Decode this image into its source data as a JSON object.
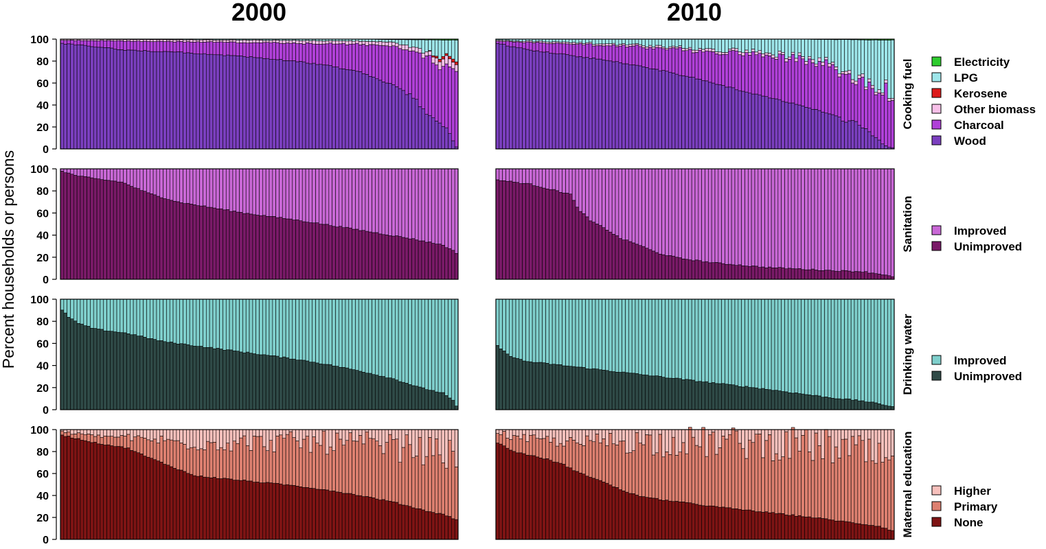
{
  "figure": {
    "ylabel": "Percent households or persons",
    "columns": [
      "2000",
      "2010"
    ],
    "yticks": [
      0,
      20,
      40,
      60,
      80,
      100
    ]
  },
  "chart_data": [
    {
      "type": "bar",
      "stacked": true,
      "row_label": "Cooking fuel",
      "ylim": [
        0,
        100
      ],
      "bars_per_panel": 120,
      "series": [
        {
          "name": "Wood",
          "color": "#7b3fbf"
        },
        {
          "name": "Charcoal",
          "color": "#b040d8"
        },
        {
          "name": "Other biomass",
          "color": "#f7c0e8"
        },
        {
          "name": "Kerosene",
          "color": "#dd1c1c"
        },
        {
          "name": "LPG",
          "color": "#9ee6ea"
        },
        {
          "name": "Electricity",
          "color": "#2ecc2e"
        }
      ],
      "panels": [
        {
          "column": "2000",
          "profiles": {
            "Wood": [
              [
                0,
                96
              ],
              [
                10,
                93
              ],
              [
                20,
                90
              ],
              [
                35,
                88
              ],
              [
                50,
                85
              ],
              [
                60,
                83
              ],
              [
                70,
                80
              ],
              [
                80,
                76
              ],
              [
                90,
                70
              ],
              [
                95,
                64
              ],
              [
                100,
                58
              ],
              [
                105,
                50
              ],
              [
                108,
                42
              ],
              [
                111,
                30
              ],
              [
                113,
                26
              ],
              [
                116,
                20
              ],
              [
                118,
                8
              ],
              [
                119,
                2
              ]
            ],
            "Charcoal": [
              [
                0,
                2
              ],
              [
                20,
                6
              ],
              [
                50,
                8
              ],
              [
                80,
                14
              ],
              [
                100,
                30
              ],
              [
                110,
                52
              ],
              [
                114,
                50
              ],
              [
                119,
                60
              ]
            ],
            "Other biomass": [
              [
                0,
                1
              ],
              [
                50,
                2
              ],
              [
                90,
                3
              ],
              [
                110,
                4
              ],
              [
                119,
                8
              ]
            ],
            "Kerosene": [
              [
                0,
                0
              ],
              [
                110,
                0
              ],
              [
                113,
                2
              ],
              [
                119,
                3
              ]
            ],
            "LPG": [
              [
                0,
                0
              ],
              [
                60,
                1
              ],
              [
                100,
                2
              ],
              [
                119,
                20
              ]
            ],
            "Electricity": [
              [
                0,
                0
              ],
              [
                90,
                0
              ],
              [
                119,
                1
              ]
            ]
          }
        },
        {
          "column": "2010",
          "profiles": {
            "Wood": [
              [
                0,
                96
              ],
              [
                10,
                90
              ],
              [
                20,
                86
              ],
              [
                30,
                82
              ],
              [
                40,
                77
              ],
              [
                50,
                71
              ],
              [
                60,
                64
              ],
              [
                70,
                56
              ],
              [
                80,
                48
              ],
              [
                90,
                41
              ],
              [
                100,
                32
              ],
              [
                108,
                25
              ],
              [
                112,
                16
              ],
              [
                115,
                8
              ],
              [
                117,
                3
              ],
              [
                119,
                1
              ]
            ],
            "Charcoal": [
              [
                0,
                2
              ],
              [
                30,
                10
              ],
              [
                60,
                20
              ],
              [
                80,
                28
              ],
              [
                100,
                40
              ],
              [
                119,
                45
              ]
            ],
            "Other biomass": [
              [
                0,
                1
              ],
              [
                60,
                2
              ],
              [
                119,
                3
              ]
            ],
            "Kerosene": [
              [
                0,
                0
              ],
              [
                119,
                0
              ]
            ],
            "LPG": [
              [
                0,
                1
              ],
              [
                40,
                5
              ],
              [
                80,
                12
              ],
              [
                100,
                20
              ],
              [
                119,
                51
              ]
            ],
            "Electricity": [
              [
                0,
                0
              ],
              [
                90,
                0
              ],
              [
                119,
                1
              ]
            ]
          }
        }
      ]
    },
    {
      "type": "bar",
      "stacked": true,
      "row_label": "Sanitation",
      "ylim": [
        0,
        100
      ],
      "bars_per_panel": 120,
      "series": [
        {
          "name": "Unimproved",
          "color": "#7a1a68"
        },
        {
          "name": "Improved",
          "color": "#c968d6"
        }
      ],
      "panels": [
        {
          "column": "2000",
          "profiles": {
            "Unimproved": [
              [
                0,
                98
              ],
              [
                4,
                94
              ],
              [
                10,
                91
              ],
              [
                18,
                88
              ],
              [
                26,
                78
              ],
              [
                35,
                70
              ],
              [
                45,
                65
              ],
              [
                55,
                60
              ],
              [
                70,
                54
              ],
              [
                85,
                47
              ],
              [
                95,
                42
              ],
              [
                105,
                37
              ],
              [
                115,
                31
              ],
              [
                119,
                24
              ]
            ],
            "Improved": []
          }
        },
        {
          "column": "2010",
          "profiles": {
            "Unimproved": [
              [
                0,
                90
              ],
              [
                10,
                86
              ],
              [
                18,
                80
              ],
              [
                22,
                77
              ],
              [
                24,
                65
              ],
              [
                28,
                53
              ],
              [
                33,
                45
              ],
              [
                37,
                37
              ],
              [
                42,
                32
              ],
              [
                48,
                24
              ],
              [
                55,
                19
              ],
              [
                65,
                15
              ],
              [
                80,
                11
              ],
              [
                100,
                8
              ],
              [
                110,
                7
              ],
              [
                117,
                4
              ],
              [
                119,
                2
              ]
            ],
            "Improved": []
          }
        }
      ]
    },
    {
      "type": "bar",
      "stacked": true,
      "row_label": "Drinking water",
      "ylim": [
        0,
        100
      ],
      "bars_per_panel": 120,
      "series": [
        {
          "name": "Unimproved",
          "color": "#2f4a47"
        },
        {
          "name": "Improved",
          "color": "#7fcfcc"
        }
      ],
      "panels": [
        {
          "column": "2000",
          "profiles": {
            "Unimproved": [
              [
                0,
                90
              ],
              [
                2,
                84
              ],
              [
                5,
                78
              ],
              [
                10,
                73
              ],
              [
                20,
                69
              ],
              [
                30,
                62
              ],
              [
                40,
                58
              ],
              [
                50,
                54
              ],
              [
                60,
                50
              ],
              [
                70,
                46
              ],
              [
                80,
                41
              ],
              [
                90,
                35
              ],
              [
                100,
                28
              ],
              [
                108,
                20
              ],
              [
                115,
                15
              ],
              [
                118,
                8
              ],
              [
                119,
                3
              ]
            ],
            "Improved": []
          }
        },
        {
          "column": "2010",
          "profiles": {
            "Unimproved": [
              [
                0,
                58
              ],
              [
                3,
                50
              ],
              [
                8,
                44
              ],
              [
                20,
                40
              ],
              [
                40,
                33
              ],
              [
                60,
                26
              ],
              [
                80,
                19
              ],
              [
                100,
                11
              ],
              [
                110,
                8
              ],
              [
                119,
                3
              ]
            ],
            "Improved": []
          }
        }
      ]
    },
    {
      "type": "bar",
      "stacked": true,
      "row_label": "Maternal education",
      "ylim": [
        0,
        100
      ],
      "bars_per_panel": 120,
      "series": [
        {
          "name": "None",
          "color": "#7e1414"
        },
        {
          "name": "Primary",
          "color": "#dd8070"
        },
        {
          "name": "Higher",
          "color": "#f7c0bc"
        }
      ],
      "panels": [
        {
          "column": "2000",
          "profiles": {
            "None": [
              [
                0,
                95
              ],
              [
                10,
                88
              ],
              [
                20,
                83
              ],
              [
                25,
                76
              ],
              [
                30,
                70
              ],
              [
                35,
                64
              ],
              [
                40,
                58
              ],
              [
                50,
                55
              ],
              [
                60,
                52
              ],
              [
                70,
                49
              ],
              [
                80,
                45
              ],
              [
                90,
                40
              ],
              [
                100,
                34
              ],
              [
                110,
                26
              ],
              [
                116,
                22
              ],
              [
                119,
                18
              ]
            ],
            "Primary": [
              [
                0,
                3
              ],
              [
                20,
                10
              ],
              [
                40,
                30
              ],
              [
                60,
                36
              ],
              [
                80,
                43
              ],
              [
                100,
                50
              ],
              [
                110,
                55
              ],
              [
                119,
                56
              ]
            ],
            "Higher": []
          }
        },
        {
          "column": "2010",
          "profiles": {
            "None": [
              [
                0,
                88
              ],
              [
                5,
                80
              ],
              [
                15,
                73
              ],
              [
                20,
                68
              ],
              [
                25,
                60
              ],
              [
                30,
                55
              ],
              [
                35,
                48
              ],
              [
                40,
                42
              ],
              [
                45,
                38
              ],
              [
                55,
                34
              ],
              [
                65,
                30
              ],
              [
                80,
                25
              ],
              [
                95,
                20
              ],
              [
                105,
                16
              ],
              [
                115,
                12
              ],
              [
                119,
                8
              ]
            ],
            "Primary": [
              [
                0,
                10
              ],
              [
                20,
                20
              ],
              [
                40,
                48
              ],
              [
                60,
                57
              ],
              [
                80,
                62
              ],
              [
                100,
                66
              ],
              [
                110,
                65
              ],
              [
                119,
                57
              ]
            ],
            "Higher": []
          }
        }
      ]
    }
  ]
}
